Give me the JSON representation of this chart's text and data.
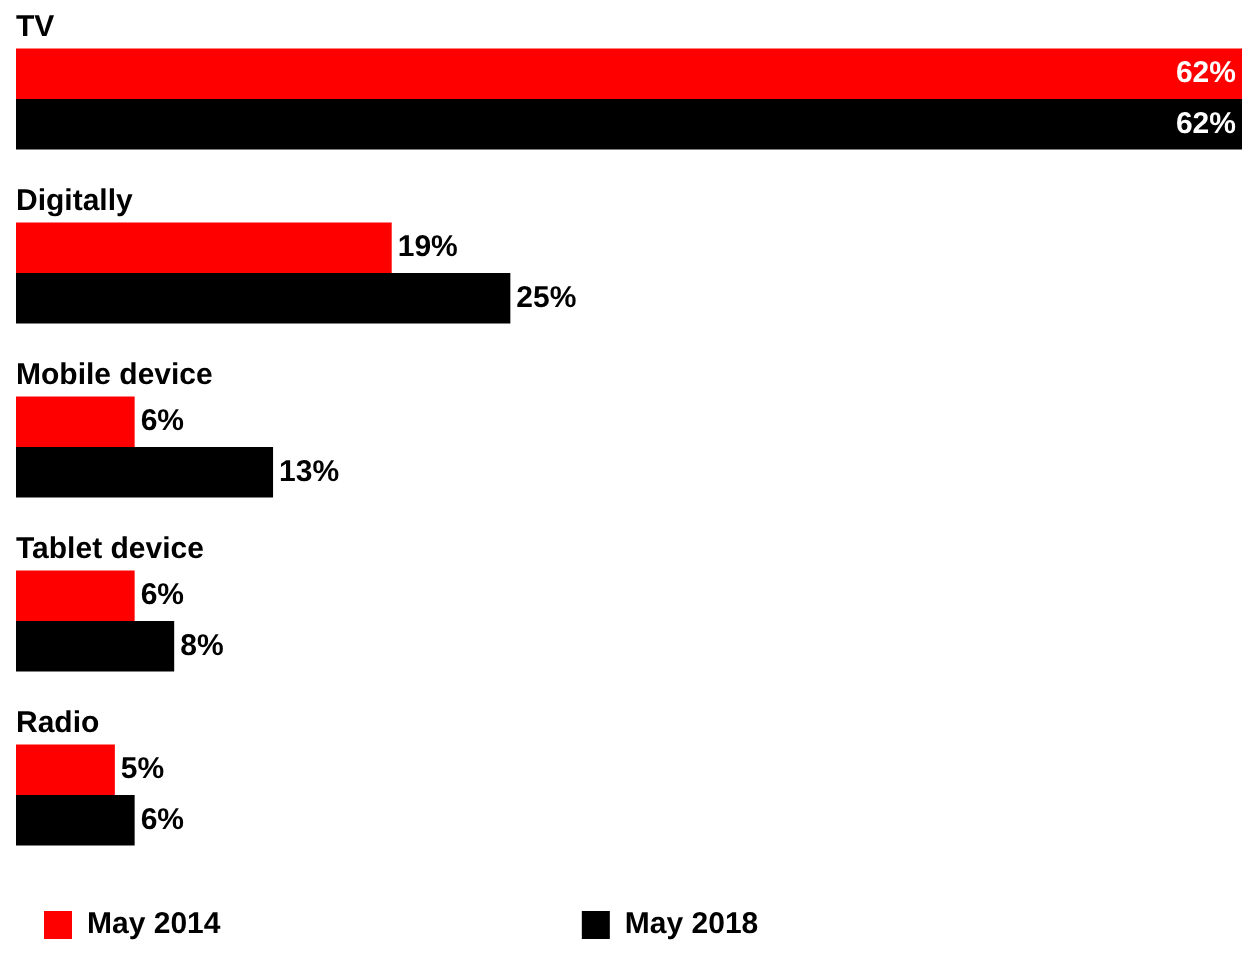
{
  "chart_data": {
    "type": "bar",
    "orientation": "horizontal",
    "categories": [
      "TV",
      "Digitally",
      "Mobile device",
      "Tablet device",
      "Radio"
    ],
    "series": [
      {
        "name": "May 2014",
        "color": "#ff0000",
        "values": [
          62,
          19,
          6,
          6,
          5
        ],
        "value_labels": [
          "62%",
          "19%",
          "6%",
          "6%",
          "5%"
        ]
      },
      {
        "name": "May 2018",
        "color": "#000000",
        "values": [
          62,
          25,
          13,
          8,
          6
        ],
        "value_labels": [
          "62%",
          "25%",
          "13%",
          "8%",
          "6%"
        ]
      }
    ],
    "legend": "bottom"
  }
}
